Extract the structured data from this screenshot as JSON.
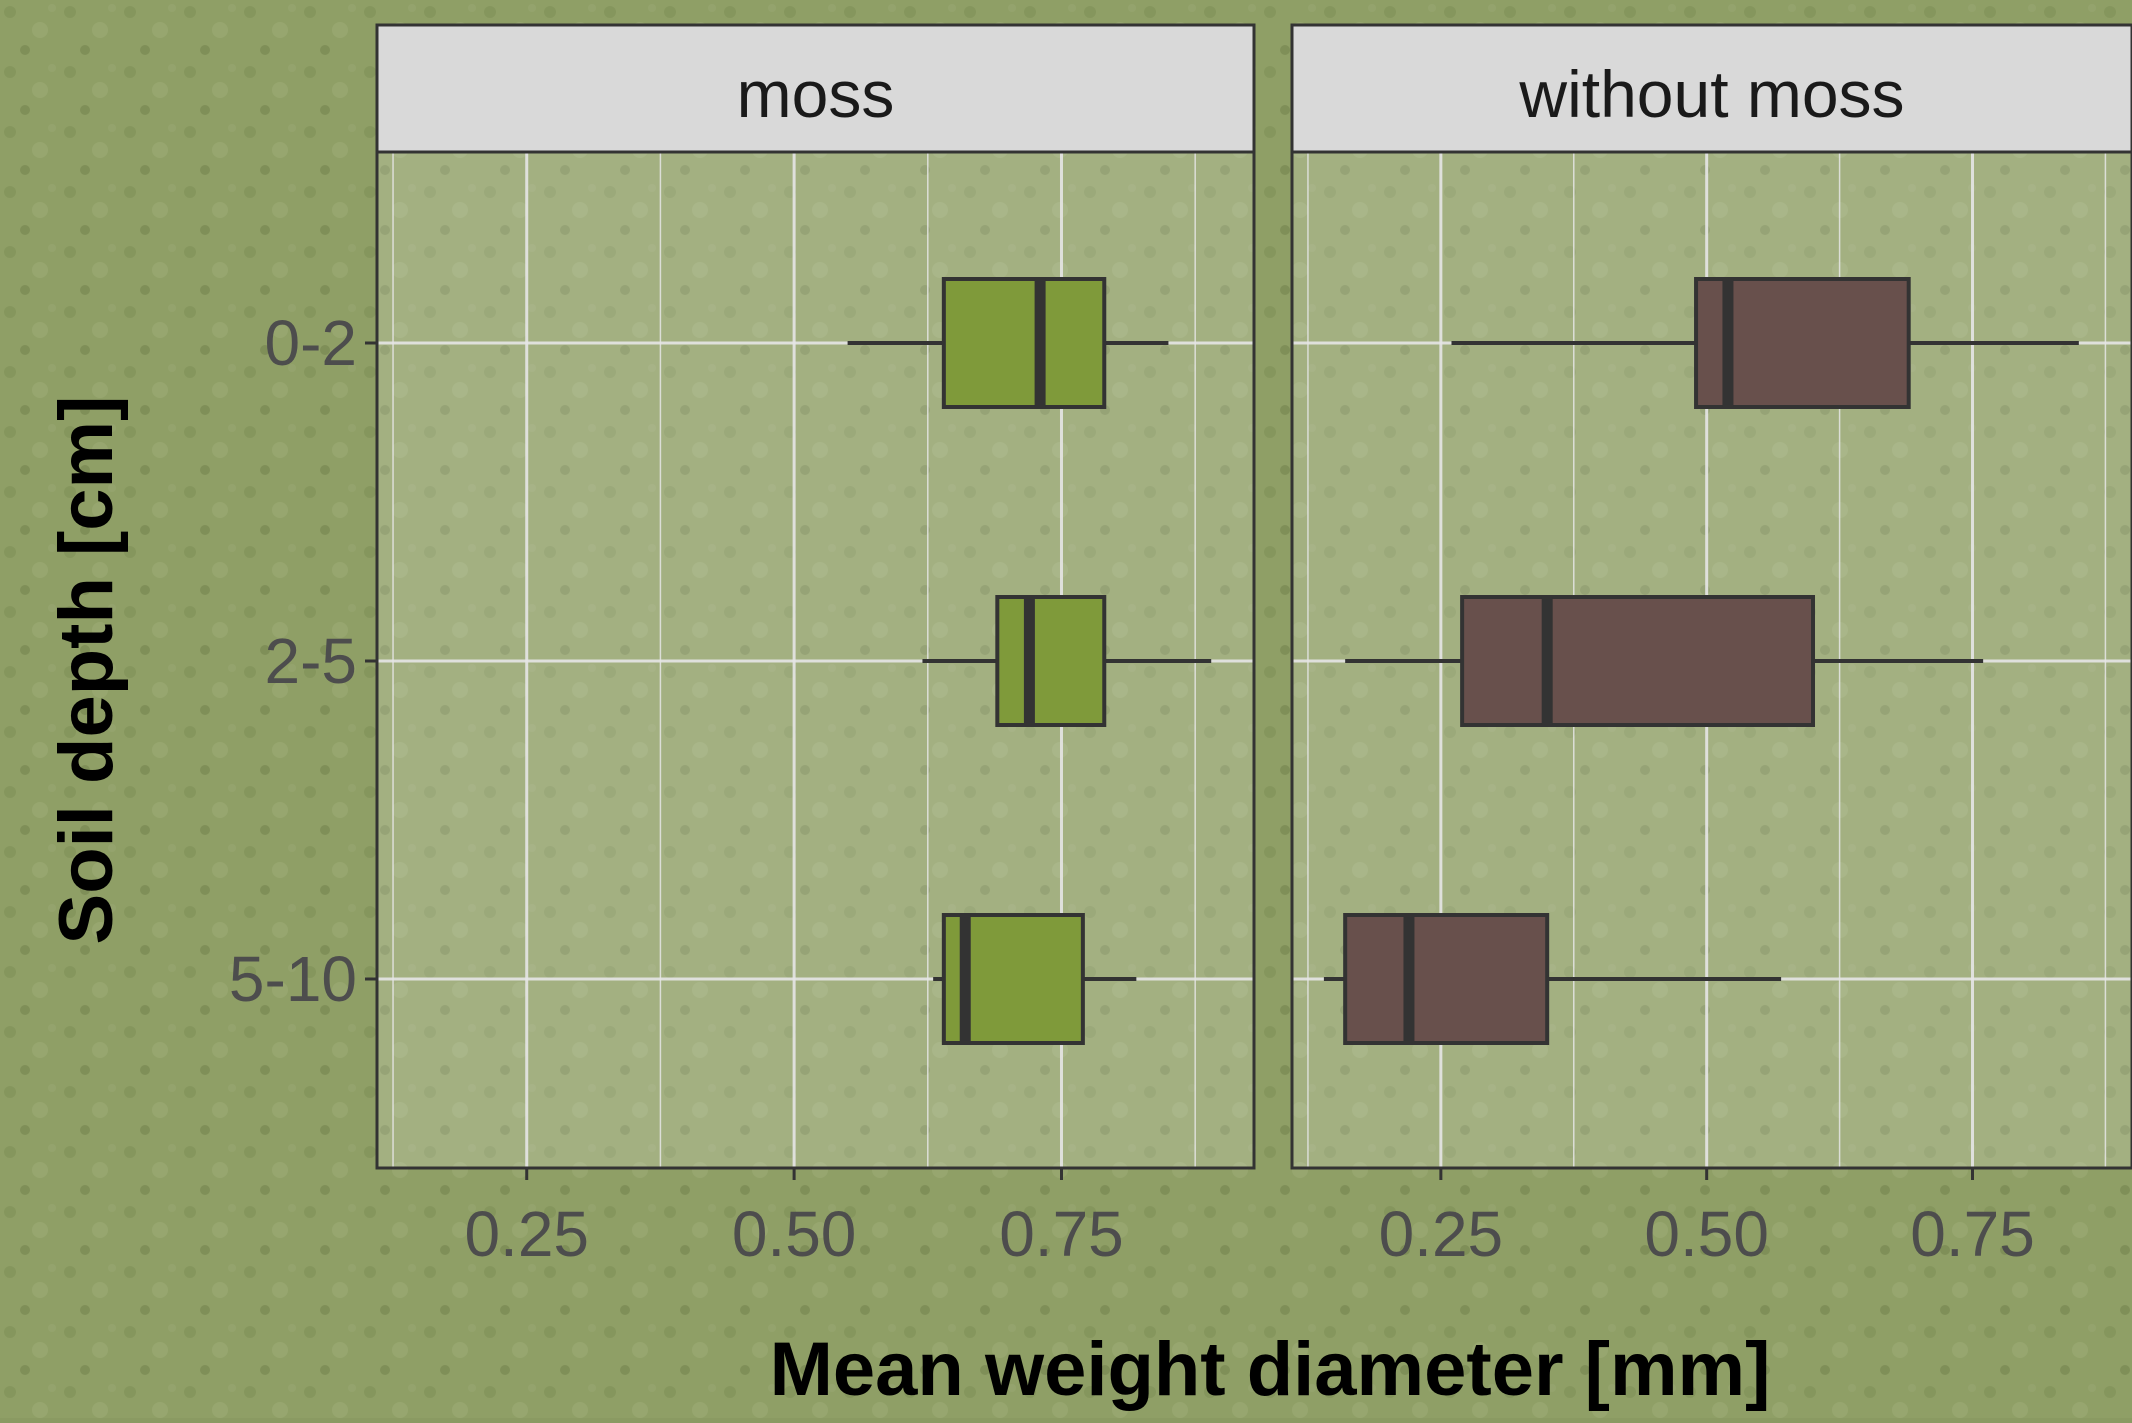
{
  "chart_data": {
    "type": "boxplot",
    "title": "",
    "xlabel": "Mean weight diameter [mm]",
    "ylabel": "Soil depth [cm]",
    "categories": [
      "0-2",
      "2-5",
      "5-10"
    ],
    "x_ticks": [
      "0.25",
      "0.50",
      "0.75"
    ],
    "x_tick_values": [
      0.25,
      0.5,
      0.75
    ],
    "grid": true,
    "legend": "none",
    "facets": [
      {
        "name": "moss",
        "xlim": [
          0.11,
          0.93
        ],
        "color": "#7f9a3a",
        "boxes": [
          {
            "category": "0-2",
            "whisker_low": 0.55,
            "q1": 0.64,
            "median": 0.73,
            "q3": 0.79,
            "whisker_high": 0.85
          },
          {
            "category": "2-5",
            "whisker_low": 0.62,
            "q1": 0.69,
            "median": 0.72,
            "q3": 0.79,
            "whisker_high": 0.89
          },
          {
            "category": "5-10",
            "whisker_low": 0.63,
            "q1": 0.64,
            "median": 0.66,
            "q3": 0.77,
            "whisker_high": 0.82
          }
        ]
      },
      {
        "name": "without moss",
        "xlim": [
          0.11,
          0.9
        ],
        "color": "#68504c",
        "boxes": [
          {
            "category": "0-2",
            "whisker_low": 0.26,
            "q1": 0.49,
            "median": 0.52,
            "q3": 0.69,
            "whisker_high": 0.85
          },
          {
            "category": "2-5",
            "whisker_low": 0.16,
            "q1": 0.27,
            "median": 0.35,
            "q3": 0.6,
            "whisker_high": 0.76
          },
          {
            "category": "5-10",
            "whisker_low": 0.14,
            "q1": 0.16,
            "median": 0.22,
            "q3": 0.35,
            "whisker_high": 0.57
          }
        ]
      }
    ]
  }
}
